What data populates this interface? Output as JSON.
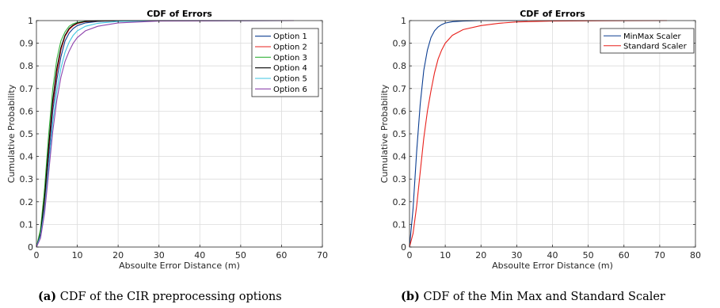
{
  "chart_data": [
    {
      "type": "line",
      "title": "CDF of Errors",
      "xlabel": "Absoulte Error Distance (m)",
      "ylabel": "Cumulative Probability",
      "xlim": [
        0,
        70
      ],
      "ylim": [
        0,
        1
      ],
      "xticks": [
        0,
        10,
        20,
        30,
        40,
        50,
        60,
        70
      ],
      "yticks": [
        0,
        0.1,
        0.2,
        0.3,
        0.4,
        0.5,
        0.6,
        0.7,
        0.8,
        0.9,
        1
      ],
      "grid": true,
      "legend_position": "top-right",
      "series": [
        {
          "name": "Option 1",
          "color": "#0b3d91",
          "x": [
            0,
            1,
            2,
            3,
            4,
            5,
            6,
            7,
            8,
            9,
            10,
            12,
            15,
            20,
            30,
            63
          ],
          "y": [
            0,
            0.05,
            0.19,
            0.4,
            0.6,
            0.74,
            0.84,
            0.91,
            0.945,
            0.965,
            0.978,
            0.99,
            0.996,
            0.999,
            1,
            1
          ]
        },
        {
          "name": "Option 2",
          "color": "#e8211c",
          "x": [
            0,
            1,
            2,
            3,
            4,
            5,
            6,
            7,
            8,
            9,
            10,
            12,
            15,
            20,
            30,
            63
          ],
          "y": [
            0,
            0.06,
            0.21,
            0.43,
            0.63,
            0.77,
            0.87,
            0.93,
            0.96,
            0.977,
            0.987,
            0.995,
            0.998,
            1,
            1,
            1
          ]
        },
        {
          "name": "Option 3",
          "color": "#37b33d",
          "x": [
            0,
            1,
            2,
            3,
            4,
            5,
            6,
            7,
            8,
            9,
            10,
            12,
            15,
            20,
            30,
            63
          ],
          "y": [
            0,
            0.08,
            0.26,
            0.5,
            0.7,
            0.83,
            0.91,
            0.95,
            0.975,
            0.986,
            0.992,
            0.997,
            0.999,
            1,
            1,
            1
          ]
        },
        {
          "name": "Option 4",
          "color": "#000000",
          "x": [
            0,
            1,
            2,
            3,
            4,
            5,
            6,
            7,
            8,
            9,
            10,
            12,
            15,
            20,
            30,
            63
          ],
          "y": [
            0,
            0.06,
            0.22,
            0.45,
            0.65,
            0.79,
            0.88,
            0.935,
            0.965,
            0.98,
            0.989,
            0.996,
            0.999,
            1,
            1,
            1
          ]
        },
        {
          "name": "Option 5",
          "color": "#3ec6e0",
          "x": [
            0,
            1,
            2,
            3,
            4,
            5,
            6,
            7,
            8,
            9,
            10,
            12,
            15,
            20,
            30,
            63
          ],
          "y": [
            0,
            0.05,
            0.17,
            0.36,
            0.55,
            0.69,
            0.79,
            0.86,
            0.905,
            0.935,
            0.955,
            0.975,
            0.988,
            0.996,
            0.999,
            1
          ]
        },
        {
          "name": "Option 6",
          "color": "#8e44ad",
          "x": [
            0,
            1,
            2,
            3,
            4,
            5,
            6,
            7,
            8,
            9,
            10,
            12,
            15,
            20,
            30,
            63
          ],
          "y": [
            0,
            0.04,
            0.15,
            0.33,
            0.51,
            0.65,
            0.75,
            0.82,
            0.865,
            0.9,
            0.925,
            0.955,
            0.975,
            0.99,
            0.998,
            1
          ]
        }
      ]
    },
    {
      "type": "line",
      "title": "CDF of Errors",
      "xlabel": "Absoulte Error Distance (m)",
      "ylabel": "Cumulative Probability",
      "xlim": [
        0,
        80
      ],
      "ylim": [
        0,
        1
      ],
      "xticks": [
        0,
        10,
        20,
        30,
        40,
        50,
        60,
        70,
        80
      ],
      "yticks": [
        0,
        0.1,
        0.2,
        0.3,
        0.4,
        0.5,
        0.6,
        0.7,
        0.8,
        0.9,
        1
      ],
      "grid": true,
      "legend_position": "top-right",
      "series": [
        {
          "name": "MinMax Scaler",
          "color": "#0b3d91",
          "x": [
            0,
            1,
            2,
            3,
            4,
            5,
            6,
            7,
            8,
            9,
            10,
            12,
            15,
            20,
            33
          ],
          "y": [
            0,
            0.17,
            0.42,
            0.63,
            0.78,
            0.87,
            0.925,
            0.955,
            0.972,
            0.982,
            0.989,
            0.995,
            0.998,
            1,
            1
          ]
        },
        {
          "name": "Standard Scaler",
          "color": "#e8211c",
          "x": [
            0,
            1,
            2,
            3,
            4,
            5,
            6,
            7,
            8,
            9,
            10,
            12,
            15,
            20,
            25,
            30,
            40,
            50,
            72
          ],
          "y": [
            0,
            0.06,
            0.18,
            0.33,
            0.48,
            0.6,
            0.69,
            0.77,
            0.83,
            0.87,
            0.9,
            0.935,
            0.96,
            0.978,
            0.988,
            0.994,
            0.998,
            0.999,
            1
          ]
        }
      ]
    }
  ],
  "captions": [
    {
      "label": "(a)",
      "text": "CDF of the CIR preprocessing options"
    },
    {
      "label": "(b)",
      "text": "CDF of the Min Max and Standard Scaler"
    }
  ]
}
